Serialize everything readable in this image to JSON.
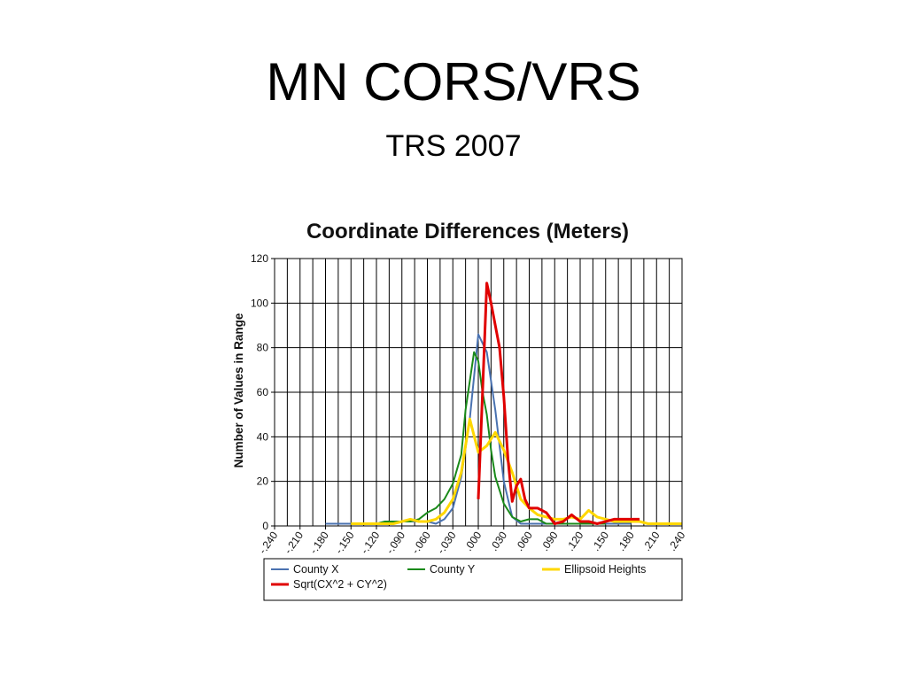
{
  "slide": {
    "title": "MN CORS/VRS",
    "subtitle": "TRS 2007"
  },
  "chart_data": {
    "type": "line",
    "title": "Coordinate Differences (Meters)",
    "xlabel": "",
    "ylabel": "Number of Values in Range",
    "xlim": [
      -0.24,
      0.24
    ],
    "ylim": [
      0,
      120
    ],
    "y_ticks": [
      "0",
      "20",
      "40",
      "60",
      "80",
      "100",
      "120"
    ],
    "x_ticks": [
      "-.240",
      "-.210",
      "-.180",
      "-.150",
      "-.120",
      "-.090",
      "-.060",
      "-.030",
      ".000",
      ".030",
      ".060",
      ".090",
      ".120",
      ".150",
      ".180",
      ".210",
      ".240"
    ],
    "grid": true,
    "legend_position": "bottom",
    "series": [
      {
        "name": "County X",
        "color": "#4a72b0",
        "points": [
          [
            -0.18,
            1
          ],
          [
            -0.15,
            1
          ],
          [
            -0.12,
            1
          ],
          [
            -0.09,
            2
          ],
          [
            -0.075,
            2
          ],
          [
            -0.06,
            2
          ],
          [
            -0.05,
            1
          ],
          [
            -0.04,
            3
          ],
          [
            -0.03,
            8
          ],
          [
            -0.02,
            22
          ],
          [
            -0.01,
            48
          ],
          [
            0.0,
            86
          ],
          [
            0.01,
            78
          ],
          [
            0.02,
            52
          ],
          [
            0.03,
            20
          ],
          [
            0.04,
            4
          ],
          [
            0.05,
            1
          ],
          [
            0.06,
            1
          ],
          [
            0.09,
            1
          ],
          [
            0.12,
            1
          ],
          [
            0.15,
            1
          ],
          [
            0.18,
            1
          ]
        ]
      },
      {
        "name": "County Y",
        "color": "#1a8a1a",
        "points": [
          [
            -0.15,
            1
          ],
          [
            -0.12,
            1
          ],
          [
            -0.11,
            2
          ],
          [
            -0.09,
            2
          ],
          [
            -0.08,
            2
          ],
          [
            -0.07,
            3
          ],
          [
            -0.06,
            6
          ],
          [
            -0.05,
            8
          ],
          [
            -0.04,
            12
          ],
          [
            -0.03,
            19
          ],
          [
            -0.02,
            32
          ],
          [
            -0.015,
            52
          ],
          [
            -0.005,
            78
          ],
          [
            0.0,
            74
          ],
          [
            0.005,
            60
          ],
          [
            0.01,
            50
          ],
          [
            0.015,
            34
          ],
          [
            0.02,
            22
          ],
          [
            0.03,
            10
          ],
          [
            0.04,
            4
          ],
          [
            0.05,
            2
          ],
          [
            0.06,
            3
          ],
          [
            0.07,
            3
          ],
          [
            0.08,
            1
          ],
          [
            0.09,
            1
          ],
          [
            0.12,
            1
          ],
          [
            0.15,
            1
          ]
        ]
      },
      {
        "name": "Ellipsoid Heights",
        "color": "#ffd700",
        "points": [
          [
            -0.15,
            1
          ],
          [
            -0.12,
            1
          ],
          [
            -0.1,
            1
          ],
          [
            -0.09,
            2
          ],
          [
            -0.08,
            3
          ],
          [
            -0.07,
            2
          ],
          [
            -0.06,
            2
          ],
          [
            -0.05,
            3
          ],
          [
            -0.04,
            6
          ],
          [
            -0.03,
            12
          ],
          [
            -0.02,
            24
          ],
          [
            -0.015,
            36
          ],
          [
            -0.01,
            48
          ],
          [
            0.0,
            33
          ],
          [
            0.01,
            36
          ],
          [
            0.02,
            42
          ],
          [
            0.03,
            34
          ],
          [
            0.04,
            24
          ],
          [
            0.05,
            12
          ],
          [
            0.06,
            8
          ],
          [
            0.07,
            5
          ],
          [
            0.08,
            4
          ],
          [
            0.09,
            3
          ],
          [
            0.1,
            3
          ],
          [
            0.11,
            4
          ],
          [
            0.12,
            3
          ],
          [
            0.13,
            7
          ],
          [
            0.14,
            4
          ],
          [
            0.15,
            3
          ],
          [
            0.16,
            2
          ],
          [
            0.17,
            2
          ],
          [
            0.18,
            2
          ],
          [
            0.19,
            2
          ],
          [
            0.2,
            1
          ],
          [
            0.21,
            1
          ],
          [
            0.22,
            1
          ],
          [
            0.23,
            1
          ],
          [
            0.24,
            1
          ]
        ]
      },
      {
        "name": "Sqrt(CX^2 + CY^2)",
        "color": "#e00000",
        "points": [
          [
            0.0,
            12
          ],
          [
            0.005,
            60
          ],
          [
            0.01,
            109
          ],
          [
            0.015,
            100
          ],
          [
            0.02,
            90
          ],
          [
            0.025,
            80
          ],
          [
            0.03,
            58
          ],
          [
            0.035,
            30
          ],
          [
            0.04,
            11
          ],
          [
            0.045,
            18
          ],
          [
            0.05,
            21
          ],
          [
            0.055,
            12
          ],
          [
            0.06,
            8
          ],
          [
            0.07,
            8
          ],
          [
            0.08,
            6
          ],
          [
            0.09,
            1
          ],
          [
            0.1,
            2
          ],
          [
            0.11,
            5
          ],
          [
            0.12,
            2
          ],
          [
            0.13,
            2
          ],
          [
            0.14,
            1
          ],
          [
            0.15,
            2
          ],
          [
            0.16,
            3
          ],
          [
            0.17,
            3
          ],
          [
            0.18,
            3
          ],
          [
            0.19,
            3
          ]
        ]
      }
    ]
  }
}
